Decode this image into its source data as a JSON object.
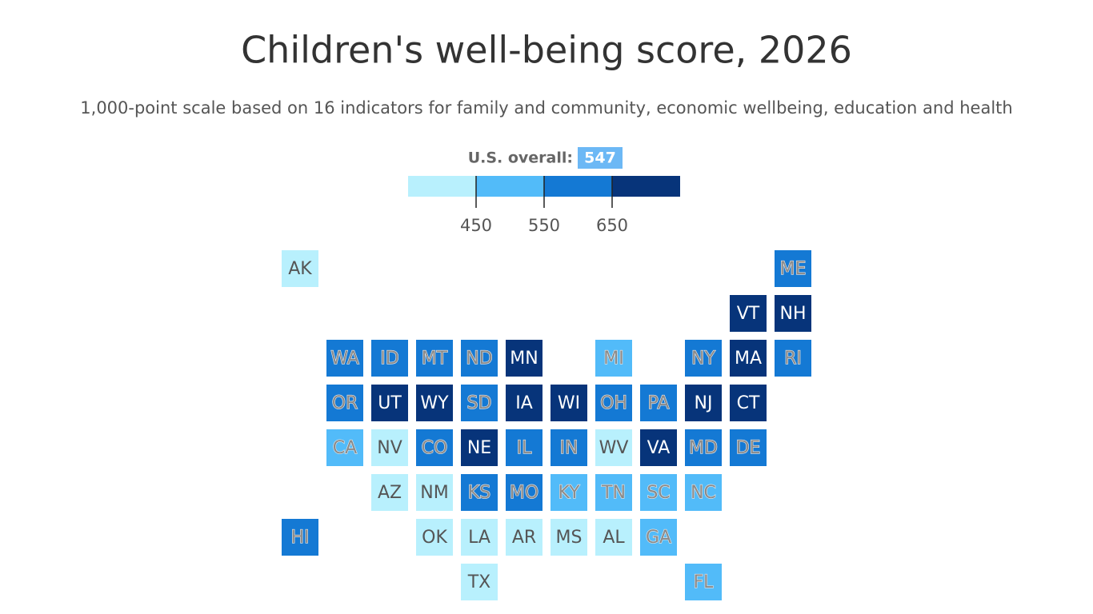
{
  "title": "Children's well-being score, 2026",
  "subtitle": "1,000-point scale based on 16 indicators for family and community, economic wellbeing, education and health",
  "overall": {
    "label": "U.S. overall:",
    "value": 547
  },
  "legend": {
    "colors": [
      "#b8f0fd",
      "#52bbf9",
      "#1479d4",
      "#07347a"
    ],
    "ticks": [
      450,
      550,
      650
    ]
  },
  "states": [
    {
      "label": "AK",
      "color": "#b8f0fd"
    },
    {
      "label": "ME",
      "color": "#1479d4"
    },
    {
      "label": "VT",
      "color": "#07347a"
    },
    {
      "label": "NH",
      "color": "#07347a"
    },
    {
      "label": "WA",
      "color": "#1479d4"
    },
    {
      "label": "ID",
      "color": "#1479d4"
    },
    {
      "label": "MT",
      "color": "#1479d4"
    },
    {
      "label": "ND",
      "color": "#1479d4"
    },
    {
      "label": "MN",
      "color": "#07347a"
    },
    {
      "label": "MI",
      "color": "#52bbf9"
    },
    {
      "label": "NY",
      "color": "#1479d4"
    },
    {
      "label": "MA",
      "color": "#07347a"
    },
    {
      "label": "RI",
      "color": "#1479d4"
    },
    {
      "label": "OR",
      "color": "#1479d4"
    },
    {
      "label": "UT",
      "color": "#07347a"
    },
    {
      "label": "WY",
      "color": "#07347a"
    },
    {
      "label": "SD",
      "color": "#1479d4"
    },
    {
      "label": "IA",
      "color": "#07347a"
    },
    {
      "label": "WI",
      "color": "#07347a"
    },
    {
      "label": "OH",
      "color": "#1479d4"
    },
    {
      "label": "PA",
      "color": "#1479d4"
    },
    {
      "label": "NJ",
      "color": "#07347a"
    },
    {
      "label": "CT",
      "color": "#07347a"
    },
    {
      "label": "CA",
      "color": "#52bbf9"
    },
    {
      "label": "NV",
      "color": "#b8f0fd"
    },
    {
      "label": "CO",
      "color": "#1479d4"
    },
    {
      "label": "NE",
      "color": "#07347a"
    },
    {
      "label": "IL",
      "color": "#1479d4"
    },
    {
      "label": "IN",
      "color": "#1479d4"
    },
    {
      "label": "WV",
      "color": "#b8f0fd"
    },
    {
      "label": "VA",
      "color": "#07347a"
    },
    {
      "label": "MD",
      "color": "#1479d4"
    },
    {
      "label": "DE",
      "color": "#1479d4"
    },
    {
      "label": "AZ",
      "color": "#b8f0fd"
    },
    {
      "label": "NM",
      "color": "#b8f0fd"
    },
    {
      "label": "KS",
      "color": "#1479d4"
    },
    {
      "label": "MO",
      "color": "#1479d4"
    },
    {
      "label": "KY",
      "color": "#52bbf9"
    },
    {
      "label": "TN",
      "color": "#52bbf9"
    },
    {
      "label": "SC",
      "color": "#52bbf9"
    },
    {
      "label": "NC",
      "color": "#52bbf9"
    },
    {
      "label": "HI",
      "color": "#1479d4"
    },
    {
      "label": "OK",
      "color": "#b8f0fd"
    },
    {
      "label": "LA",
      "color": "#b8f0fd"
    },
    {
      "label": "AR",
      "color": "#b8f0fd"
    },
    {
      "label": "MS",
      "color": "#b8f0fd"
    },
    {
      "label": "AL",
      "color": "#b8f0fd"
    },
    {
      "label": "GA",
      "color": "#52bbf9"
    },
    {
      "label": "TX",
      "color": "#b8f0fd"
    },
    {
      "label": "FL",
      "color": "#52bbf9"
    }
  ]
}
